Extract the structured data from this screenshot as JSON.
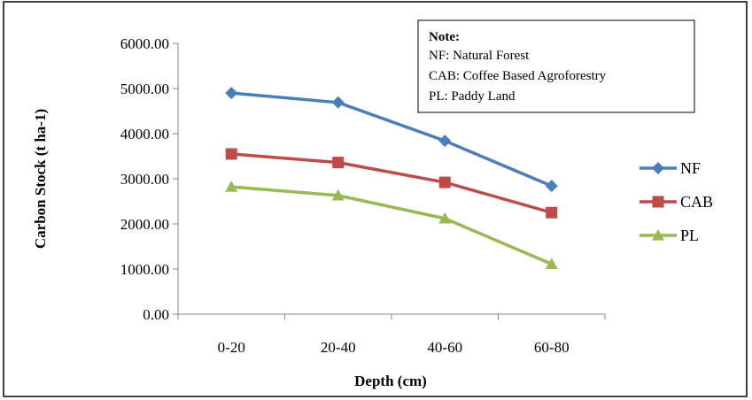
{
  "chart_data": {
    "type": "line",
    "xlabel": "Depth (cm)",
    "ylabel": "Carbon Stock (t ha-1)",
    "categories": [
      "0-20",
      "20-40",
      "40-60",
      "60-80"
    ],
    "ylim": [
      0,
      6000
    ],
    "yticks": [
      "0.00",
      "1000.00",
      "2000.00",
      "3000.00",
      "4000.00",
      "5000.00",
      "6000.00"
    ],
    "grid": false,
    "legend_position": "right",
    "series": [
      {
        "name": "NF",
        "color": "#4a7ebb",
        "marker": "diamond",
        "values": [
          4900,
          4690,
          3840,
          2840
        ]
      },
      {
        "name": "CAB",
        "color": "#be4b48",
        "marker": "square",
        "values": [
          3550,
          3360,
          2920,
          2250
        ]
      },
      {
        "name": "PL",
        "color": "#98b954",
        "marker": "triangle",
        "values": [
          2820,
          2630,
          2120,
          1110
        ]
      }
    ],
    "note": {
      "title": "Note:",
      "lines": [
        "NF: Natural Forest",
        "CAB: Coffee Based Agroforestry",
        "PL: Paddy Land"
      ]
    }
  }
}
